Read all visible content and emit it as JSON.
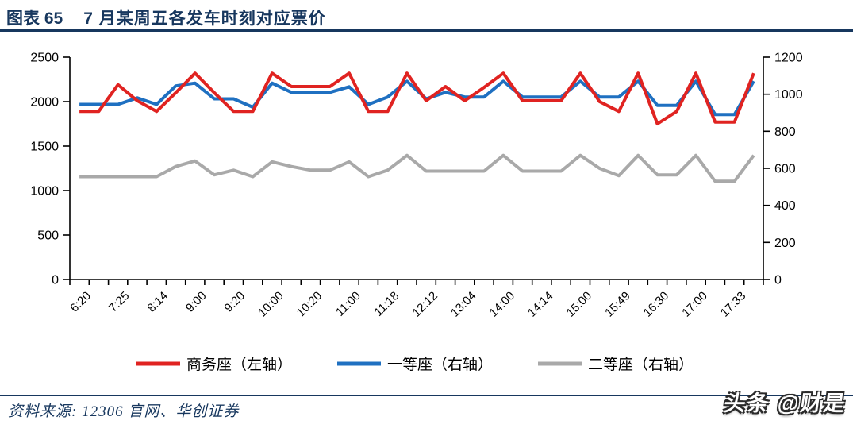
{
  "header": {
    "figure_label": "图表 65",
    "title": "7 月某周五各发车时刻对应票价"
  },
  "footer": {
    "source": "资料来源: 12306 官网、华创证券",
    "watermark": "头条 @财是"
  },
  "colors": {
    "accent_dark_blue": "#17375e",
    "business_red": "#e02321",
    "first_class_blue": "#1f70c1",
    "second_class_gray": "#a9a9a9",
    "axis_black": "#000000"
  },
  "chart_data": {
    "type": "line",
    "title": "7 月某周五各发车时刻对应票价",
    "grid": false,
    "legend_position": "bottom",
    "x_axis": {
      "tick_labels": [
        "6:20",
        "7:25",
        "8:14",
        "9:00",
        "9:20",
        "10:00",
        "10:20",
        "11:00",
        "11:18",
        "12:12",
        "13:04",
        "14:00",
        "14:14",
        "15:00",
        "15:49",
        "16:30",
        "17:00",
        "17:33"
      ],
      "points_per_tick_label": 2,
      "n_points": 36
    },
    "left_axis": {
      "min": 0,
      "max": 2500,
      "step": 500
    },
    "right_axis": {
      "min": 0,
      "max": 1200,
      "step": 200
    },
    "series": [
      {
        "name": "商务座（左轴）",
        "axis": "left",
        "color": "#e02321",
        "values": [
          1890,
          1890,
          2190,
          2010,
          1890,
          2100,
          2320,
          2100,
          1890,
          1890,
          2320,
          2170,
          2170,
          2170,
          2320,
          1890,
          1890,
          2320,
          2010,
          2170,
          2010,
          2160,
          2320,
          2010,
          2010,
          2010,
          2320,
          2000,
          1890,
          2320,
          1750,
          1890,
          2320,
          1770,
          1770,
          2320
        ]
      },
      {
        "name": "一等座（右轴）",
        "axis": "right",
        "color": "#1f70c1",
        "values": [
          945,
          945,
          945,
          980,
          945,
          1045,
          1060,
          975,
          975,
          930,
          1060,
          1010,
          1010,
          1010,
          1040,
          945,
          985,
          1070,
          975,
          1010,
          985,
          985,
          1070,
          985,
          985,
          985,
          1070,
          985,
          985,
          1070,
          940,
          940,
          1070,
          890,
          890,
          1070
        ]
      },
      {
        "name": "二等座（右轴）",
        "axis": "right",
        "color": "#a9a9a9",
        "values": [
          555,
          555,
          555,
          555,
          555,
          610,
          640,
          565,
          590,
          555,
          635,
          610,
          590,
          590,
          635,
          555,
          590,
          670,
          585,
          585,
          585,
          585,
          670,
          585,
          585,
          585,
          670,
          600,
          560,
          670,
          565,
          565,
          670,
          530,
          530,
          670
        ]
      }
    ]
  }
}
